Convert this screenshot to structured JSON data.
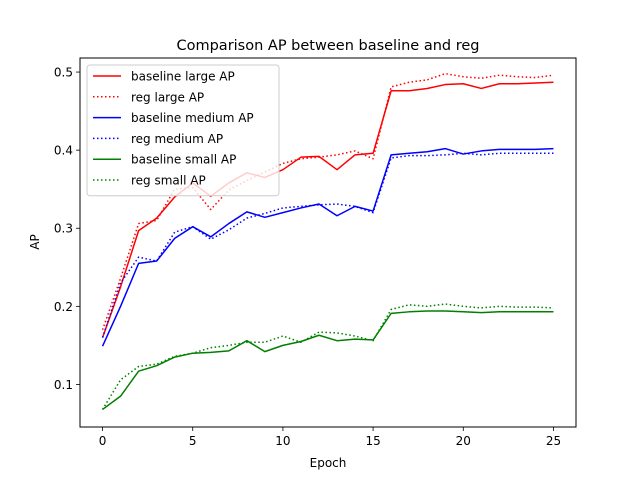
{
  "chart_data": {
    "type": "line",
    "title": "Comparison AP between baseline and reg",
    "xlabel": "Epoch",
    "ylabel": "AP",
    "xlim": [
      -1.25,
      26.25
    ],
    "ylim": [
      0.0455,
      0.518
    ],
    "xticks": [
      0,
      5,
      10,
      15,
      20,
      25
    ],
    "xtick_labels": [
      "0",
      "5",
      "10",
      "15",
      "20",
      "25"
    ],
    "yticks": [
      0.1,
      0.2,
      0.3,
      0.4,
      0.5
    ],
    "ytick_labels": [
      "0.1",
      "0.2",
      "0.3",
      "0.4",
      "0.5"
    ],
    "grid": false,
    "legend_position": "top-left",
    "x": [
      0,
      1,
      2,
      3,
      4,
      5,
      6,
      7,
      8,
      9,
      10,
      11,
      12,
      13,
      14,
      15,
      16,
      17,
      18,
      19,
      20,
      21,
      22,
      23,
      24,
      25
    ],
    "series": [
      {
        "name": "baseline large AP",
        "color": "#ff0000",
        "style": "solid",
        "values": [
          0.16,
          0.225,
          0.297,
          0.313,
          0.34,
          0.358,
          0.341,
          0.358,
          0.371,
          0.365,
          0.375,
          0.391,
          0.392,
          0.375,
          0.394,
          0.396,
          0.476,
          0.476,
          0.479,
          0.484,
          0.485,
          0.479,
          0.485,
          0.485,
          0.486,
          0.487
        ]
      },
      {
        "name": "reg large AP",
        "color": "#ff0000",
        "style": "dotted",
        "values": [
          0.17,
          0.236,
          0.306,
          0.31,
          0.35,
          0.352,
          0.324,
          0.349,
          0.361,
          0.372,
          0.383,
          0.389,
          0.391,
          0.394,
          0.399,
          0.389,
          0.481,
          0.487,
          0.49,
          0.498,
          0.494,
          0.492,
          0.496,
          0.494,
          0.493,
          0.496
        ]
      },
      {
        "name": "baseline medium AP",
        "color": "#0000ff",
        "style": "solid",
        "values": [
          0.149,
          0.2,
          0.255,
          0.258,
          0.287,
          0.302,
          0.289,
          0.306,
          0.321,
          0.314,
          0.32,
          0.326,
          0.331,
          0.316,
          0.328,
          0.322,
          0.394,
          0.396,
          0.398,
          0.402,
          0.395,
          0.399,
          0.401,
          0.401,
          0.401,
          0.402
        ]
      },
      {
        "name": "reg medium AP",
        "color": "#0000ff",
        "style": "dotted",
        "values": [
          0.16,
          0.23,
          0.263,
          0.258,
          0.295,
          0.302,
          0.286,
          0.298,
          0.313,
          0.319,
          0.326,
          0.328,
          0.33,
          0.331,
          0.328,
          0.32,
          0.39,
          0.393,
          0.393,
          0.394,
          0.396,
          0.394,
          0.396,
          0.396,
          0.396,
          0.396
        ]
      },
      {
        "name": "baseline small AP",
        "color": "#008000",
        "style": "solid",
        "values": [
          0.068,
          0.085,
          0.117,
          0.124,
          0.135,
          0.14,
          0.141,
          0.143,
          0.156,
          0.142,
          0.15,
          0.155,
          0.163,
          0.156,
          0.158,
          0.157,
          0.191,
          0.193,
          0.194,
          0.194,
          0.193,
          0.192,
          0.193,
          0.193,
          0.193,
          0.193
        ]
      },
      {
        "name": "reg small AP",
        "color": "#008000",
        "style": "dotted",
        "values": [
          0.068,
          0.106,
          0.123,
          0.126,
          0.136,
          0.14,
          0.147,
          0.15,
          0.154,
          0.154,
          0.162,
          0.154,
          0.167,
          0.166,
          0.162,
          0.156,
          0.196,
          0.202,
          0.2,
          0.203,
          0.2,
          0.198,
          0.2,
          0.199,
          0.199,
          0.198
        ]
      }
    ]
  }
}
